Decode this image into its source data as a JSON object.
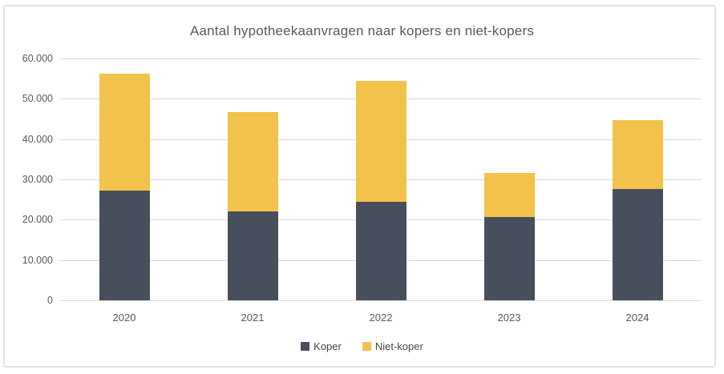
{
  "chart_data": {
    "type": "bar",
    "stacked": true,
    "title": "Aantal hypotheekaanvragen naar kopers en niet-kopers",
    "categories": [
      "2020",
      "2021",
      "2022",
      "2023",
      "2024"
    ],
    "series": [
      {
        "name": "Koper",
        "color": "#474f5c",
        "values": [
          27300,
          22000,
          24500,
          20700,
          27700
        ]
      },
      {
        "name": "Niet-koper",
        "color": "#f2c24b",
        "values": [
          29000,
          24600,
          30000,
          10800,
          17100
        ]
      }
    ],
    "totals": [
      56300,
      46600,
      54500,
      31500,
      44800
    ],
    "xlabel": "",
    "ylabel": "",
    "ylim": [
      0,
      60000
    ],
    "ytick_step": 10000,
    "yticks": [
      {
        "label": "0",
        "value": 0
      },
      {
        "label": "10.000",
        "value": 10000
      },
      {
        "label": "20.000",
        "value": 20000
      },
      {
        "label": "30.000",
        "value": 30000
      },
      {
        "label": "40.000",
        "value": 40000
      },
      {
        "label": "50.000",
        "value": 50000
      },
      {
        "label": "60.000",
        "value": 60000
      }
    ],
    "grid": "horizontal",
    "legend_position": "bottom",
    "colors": {
      "title_text": "#595959",
      "axis_text": "#595959",
      "gridline": "#d9d9d9",
      "frame_border": "#e3e3e3",
      "background": "#ffffff"
    }
  }
}
